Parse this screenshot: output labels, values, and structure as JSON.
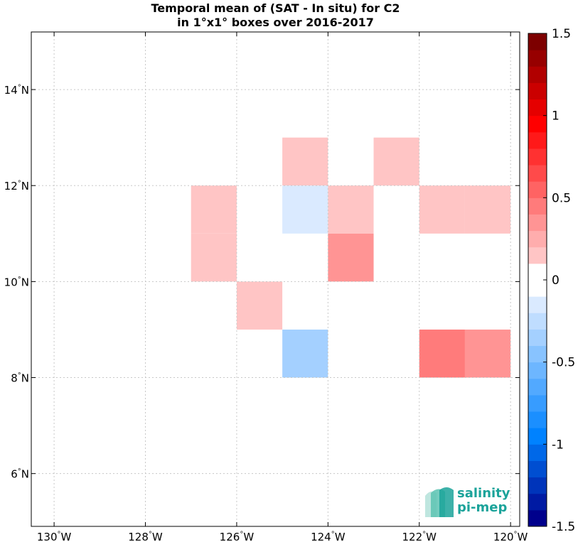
{
  "title": {
    "line1": "Temporal mean of (SAT - In situ) for C2",
    "line2": "in 1°x1° boxes over 2016-2017"
  },
  "chart_data": {
    "type": "heatmap",
    "x_axis": {
      "range": [
        -130.5,
        -119.8
      ],
      "ticks": [
        -130,
        -128,
        -126,
        -124,
        -122,
        -120
      ],
      "tick_labels": [
        "130°W",
        "128°W",
        "126°W",
        "124°W",
        "122°W",
        "120°W"
      ]
    },
    "y_axis": {
      "range": [
        4.9,
        15.2
      ],
      "ticks": [
        6,
        8,
        10,
        12,
        14
      ],
      "tick_labels": [
        "6°N",
        "8°N",
        "10°N",
        "12°N",
        "14°N"
      ]
    },
    "grid": true,
    "colorbar": {
      "range": [
        -1.5,
        1.5
      ],
      "ticks": [
        1.5,
        1,
        0.5,
        0,
        -0.5,
        -1,
        -1.5
      ],
      "tick_labels": [
        "1.5",
        "1",
        "0.5",
        "0",
        "-0.5",
        "-1",
        "-1.5"
      ],
      "levels": 30
    },
    "cells": [
      {
        "lon_min": -125,
        "lon_max": -124,
        "lat_min": 12,
        "lat_max": 13,
        "value": 0.15
      },
      {
        "lon_min": -123,
        "lon_max": -122,
        "lat_min": 12,
        "lat_max": 13,
        "value": 0.15
      },
      {
        "lon_min": -127,
        "lon_max": -126,
        "lat_min": 11,
        "lat_max": 12,
        "value": 0.15
      },
      {
        "lon_min": -125,
        "lon_max": -124,
        "lat_min": 11,
        "lat_max": 12,
        "value": -0.15
      },
      {
        "lon_min": -124,
        "lon_max": -123,
        "lat_min": 11,
        "lat_max": 12,
        "value": 0.15
      },
      {
        "lon_min": -122,
        "lon_max": -121,
        "lat_min": 11,
        "lat_max": 12,
        "value": 0.15
      },
      {
        "lon_min": -121,
        "lon_max": -120,
        "lat_min": 11,
        "lat_max": 12,
        "value": 0.15
      },
      {
        "lon_min": -127,
        "lon_max": -126,
        "lat_min": 10,
        "lat_max": 11,
        "value": 0.15
      },
      {
        "lon_min": -124,
        "lon_max": -123,
        "lat_min": 10,
        "lat_max": 11,
        "value": 0.3
      },
      {
        "lon_min": -126,
        "lon_max": -125,
        "lat_min": 9,
        "lat_max": 10,
        "value": 0.15
      },
      {
        "lon_min": -125,
        "lon_max": -124,
        "lat_min": 8,
        "lat_max": 9,
        "value": -0.3
      },
      {
        "lon_min": -122,
        "lon_max": -121,
        "lat_min": 8,
        "lat_max": 9,
        "value": 0.45
      },
      {
        "lon_min": -121,
        "lon_max": -120,
        "lat_min": 8,
        "lat_max": 9,
        "value": 0.3
      }
    ]
  },
  "logo": {
    "line1": "salinity",
    "line2": "pi-mep"
  }
}
